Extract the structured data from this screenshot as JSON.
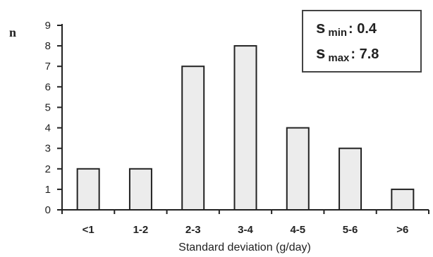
{
  "chart_data": {
    "type": "bar",
    "categories": [
      "<1",
      "1-2",
      "2-3",
      "3-4",
      "4-5",
      "5-6",
      ">6"
    ],
    "values": [
      2,
      2,
      7,
      8,
      4,
      3,
      1
    ],
    "xlabel": "Standard deviation (g/day)",
    "ylabel": "n",
    "ylim": [
      0,
      9
    ],
    "yticks": [
      0,
      1,
      2,
      3,
      4,
      5,
      6,
      7,
      8,
      9
    ],
    "grid": false,
    "bar_fill": "#ececec",
    "bar_stroke": "#222222",
    "annotations": {
      "s_min": {
        "symbol": "s",
        "subscript": "min",
        "value": ": 0.4"
      },
      "s_max": {
        "symbol": "s",
        "subscript": "max",
        "value": ": 7.8"
      }
    }
  }
}
